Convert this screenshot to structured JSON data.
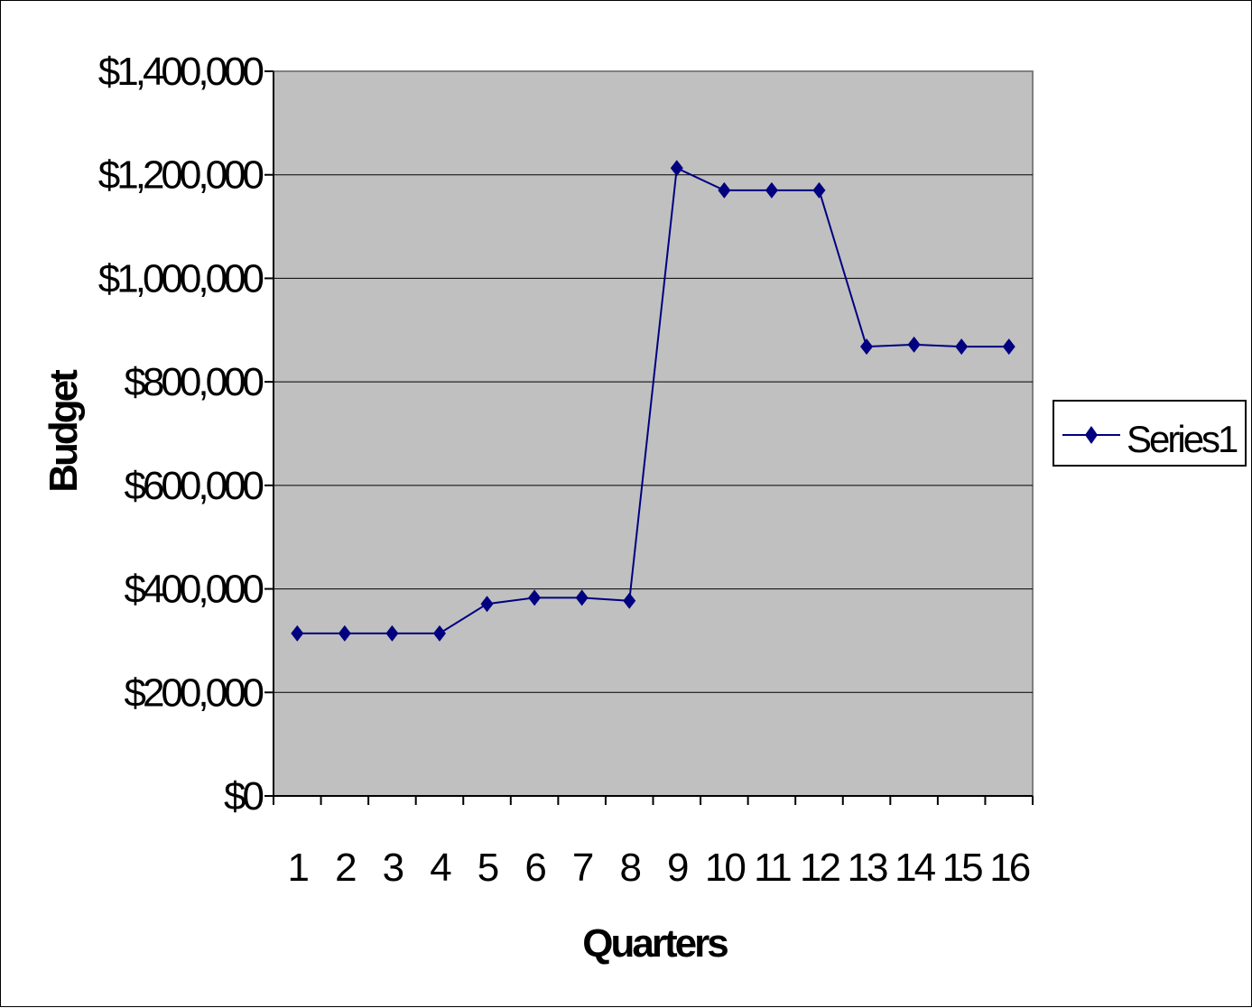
{
  "chart_data": {
    "type": "line",
    "title": "",
    "xlabel": "Quarters",
    "ylabel": "Budget",
    "categories": [
      "1",
      "2",
      "3",
      "4",
      "5",
      "6",
      "7",
      "8",
      "9",
      "10",
      "11",
      "12",
      "13",
      "14",
      "15",
      "16"
    ],
    "series": [
      {
        "name": "Series1",
        "values": [
          314000,
          314000,
          314000,
          314000,
          371000,
          383000,
          383000,
          377000,
          1213000,
          1170000,
          1170000,
          1170000,
          868000,
          872000,
          868000,
          868000
        ]
      }
    ],
    "ylim": [
      0,
      1400000
    ],
    "y_ticks": [
      {
        "value": 0,
        "label": "$0"
      },
      {
        "value": 200000,
        "label": "$200,000"
      },
      {
        "value": 400000,
        "label": "$400,000"
      },
      {
        "value": 600000,
        "label": "$600,000"
      },
      {
        "value": 800000,
        "label": "$800,000"
      },
      {
        "value": 1000000,
        "label": "$1,000,000"
      },
      {
        "value": 1200000,
        "label": "$1,200,000"
      },
      {
        "value": 1400000,
        "label": "$1,400,000"
      }
    ],
    "grid": true,
    "legend": "right",
    "marker": "diamond",
    "colors": {
      "series": "#000080",
      "plot_background": "#c0c0c0",
      "gridlines": "#000000"
    }
  }
}
